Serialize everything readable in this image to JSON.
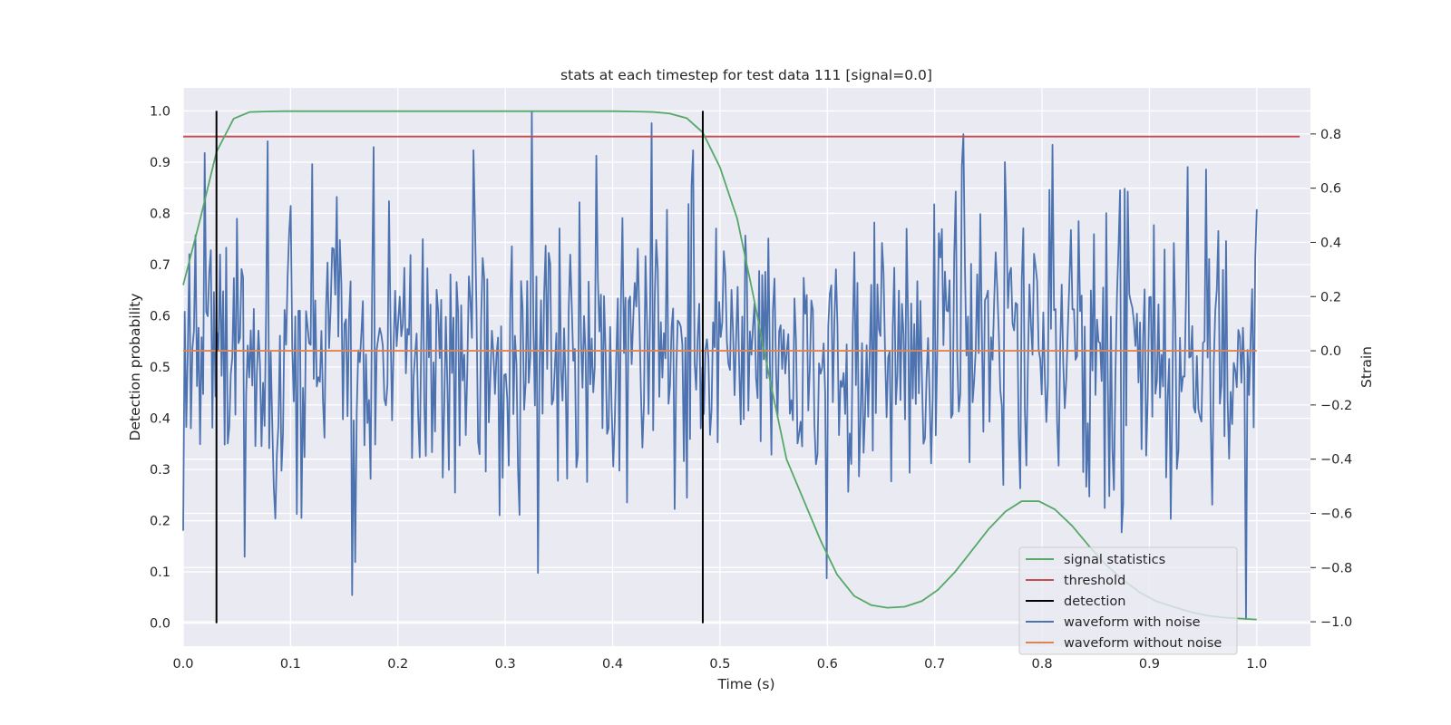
{
  "chart_data": {
    "type": "line",
    "title": "stats at each timestep for test data 111 [signal=0.0]",
    "xlabel": "Time (s)",
    "ylabel": "Detection probability",
    "y2label": "Strain",
    "xlim": [
      0.0,
      1.05
    ],
    "ylim": [
      -0.045,
      1.045
    ],
    "y2lim": [
      -1.09,
      0.97
    ],
    "x_ticks": [
      "0.0",
      "0.1",
      "0.2",
      "0.3",
      "0.4",
      "0.5",
      "0.6",
      "0.7",
      "0.8",
      "0.9",
      "1.0"
    ],
    "y_ticks": [
      "0.0",
      "0.1",
      "0.2",
      "0.3",
      "0.4",
      "0.5",
      "0.6",
      "0.7",
      "0.8",
      "0.9",
      "1.0"
    ],
    "y2_ticks": [
      "−1.0",
      "−0.8",
      "−0.6",
      "−0.4",
      "−0.2",
      "0.0",
      "0.2",
      "0.4",
      "0.6",
      "0.8"
    ],
    "grid": true,
    "legend_position": "lower-right",
    "colors": {
      "signal": "#55a868",
      "threshold": "#c44e52",
      "detection": "#000000",
      "noise": "#4c72b0",
      "clean": "#dd8452",
      "plot_bg": "#eaeaf2",
      "grid": "#ffffff"
    },
    "series": [
      {
        "name": "signal statistics",
        "axis": "left",
        "x": [
          0.0,
          0.016,
          0.031,
          0.047,
          0.062,
          0.078,
          0.094,
          0.11,
          0.2,
          0.3,
          0.4,
          0.42,
          0.438,
          0.453,
          0.469,
          0.484,
          0.5,
          0.516,
          0.531,
          0.547,
          0.562,
          0.578,
          0.594,
          0.609,
          0.625,
          0.641,
          0.656,
          0.672,
          0.688,
          0.703,
          0.719,
          0.734,
          0.75,
          0.766,
          0.781,
          0.797,
          0.812,
          0.828,
          0.844,
          0.859,
          0.875,
          0.891,
          0.906,
          0.922,
          0.938,
          0.953,
          0.969,
          0.984,
          1.0
        ],
        "y": [
          0.66,
          0.79,
          0.92,
          0.985,
          0.998,
          0.999,
          0.9995,
          0.9995,
          0.9995,
          0.9995,
          0.9995,
          0.999,
          0.998,
          0.995,
          0.986,
          0.958,
          0.89,
          0.79,
          0.64,
          0.47,
          0.32,
          0.24,
          0.16,
          0.095,
          0.053,
          0.035,
          0.03,
          0.032,
          0.043,
          0.065,
          0.1,
          0.14,
          0.183,
          0.218,
          0.238,
          0.238,
          0.222,
          0.19,
          0.15,
          0.115,
          0.085,
          0.06,
          0.043,
          0.032,
          0.022,
          0.015,
          0.011,
          0.009,
          0.007
        ]
      },
      {
        "name": "threshold",
        "axis": "left",
        "x": [
          0.0,
          1.04
        ],
        "y": [
          0.95,
          0.95
        ]
      },
      {
        "name": "detection",
        "axis": "left",
        "x": [
          0.031,
          0.484
        ],
        "y": [
          1.0,
          1.0
        ]
      },
      {
        "name": "waveform with noise",
        "axis": "right",
        "x_start": 0.0,
        "x_end": 1.0,
        "n_points": 700,
        "amplitude": 0.28,
        "peaks": [
          [
            0.02,
            0.73
          ],
          [
            0.325,
            0.88
          ],
          [
            0.33,
            -0.82
          ],
          [
            0.6,
            -0.84
          ],
          [
            0.81,
            0.76
          ],
          [
            0.99,
            -0.99
          ],
          [
            0.27,
            0.74
          ],
          [
            0.385,
            0.72
          ],
          [
            0.475,
            0.74
          ],
          [
            0.16,
            -0.78
          ],
          [
            0.057,
            -0.76
          ]
        ]
      },
      {
        "name": "waveform without noise",
        "axis": "right",
        "x": [
          0.0,
          1.0
        ],
        "y": [
          0.0,
          0.0
        ]
      }
    ]
  }
}
